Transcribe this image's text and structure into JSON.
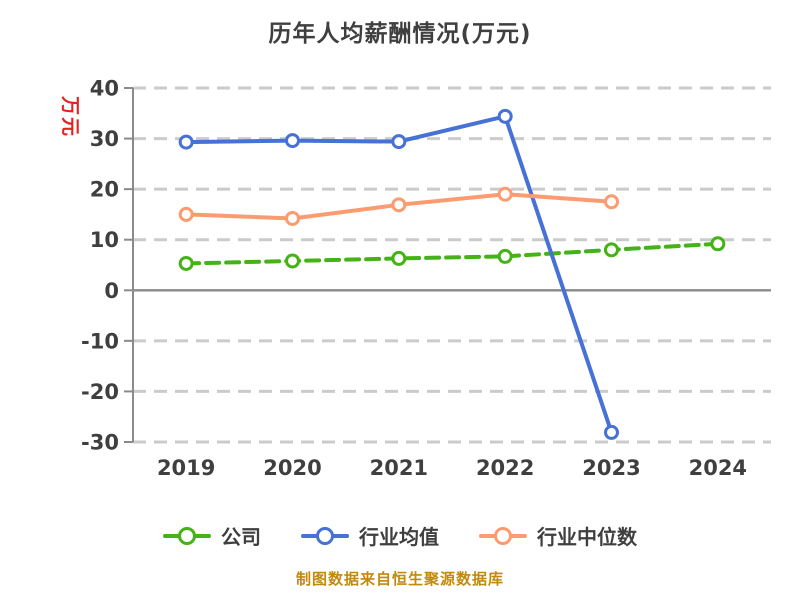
{
  "chart_data": {
    "type": "line",
    "title": "历年人均薪酬情况(万元)",
    "ylabel": "万元",
    "xlabel": "",
    "ylim": [
      -30,
      40
    ],
    "ytick_step": 10,
    "yticks": [
      40,
      30,
      20,
      10,
      0,
      -10,
      -20,
      -30
    ],
    "categories": [
      "2019",
      "2020",
      "2021",
      "2022",
      "2023",
      "2024"
    ],
    "series": [
      {
        "id": "company",
        "name": "公司",
        "color": "#45b317",
        "line_style": "dashed",
        "marker": "circle-white-fill",
        "values": [
          5.3,
          5.8,
          6.3,
          6.7,
          8.0,
          9.2
        ]
      },
      {
        "id": "industry-mean",
        "name": "行业均值",
        "color": "#4671d5",
        "line_style": "solid",
        "marker": "circle-white-fill",
        "values": [
          29.3,
          29.6,
          29.4,
          34.4,
          -28.1,
          null
        ]
      },
      {
        "id": "industry-median",
        "name": "行业中位数",
        "color": "#fb9b6f",
        "line_style": "solid",
        "marker": "circle-white-fill",
        "values": [
          15.0,
          14.2,
          16.9,
          19.0,
          17.5,
          null
        ]
      }
    ],
    "grid": "horizontal-dashed",
    "legend_position": "bottom",
    "footer": "制图数据来自恒生聚源数据库",
    "colors": {
      "title_text": "#3f3f3f",
      "axis_label_text": "#3f3f3f",
      "y_axis_name_text": "#e32222",
      "gridline": "#cbcbcb",
      "axis_line": "#8a8a8a",
      "zero_line": "#8a8a8a",
      "footer_text": "#c3890c",
      "background": "#ffffff"
    }
  }
}
